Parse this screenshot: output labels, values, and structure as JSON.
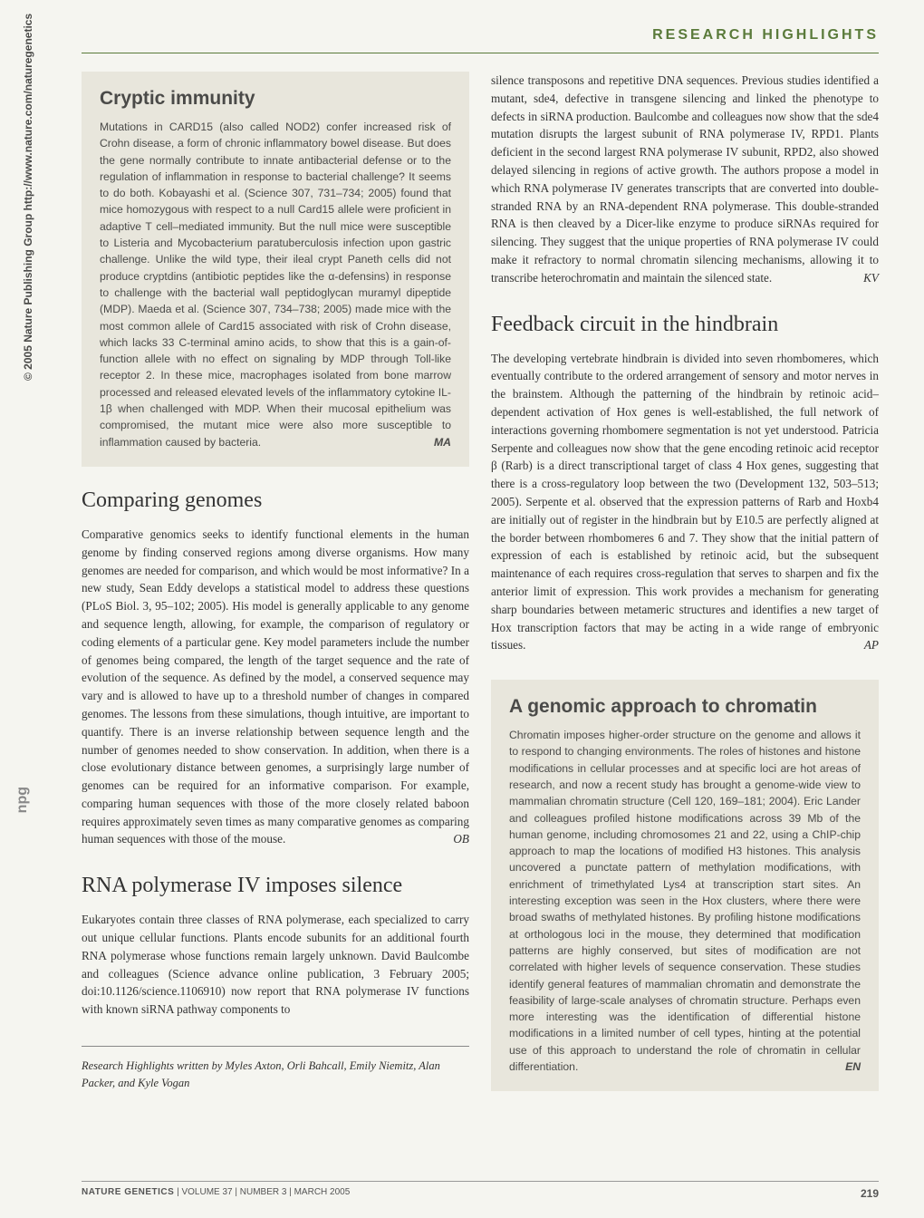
{
  "header": {
    "section_title": "RESEARCH HIGHLIGHTS"
  },
  "sidebar": {
    "copyright": "© 2005 Nature Publishing Group  http://www.nature.com/naturegenetics",
    "logo": "npg"
  },
  "articles": {
    "cryptic_immunity": {
      "title": "Cryptic immunity",
      "body": "Mutations in CARD15 (also called NOD2) confer increased risk of Crohn disease, a form of chronic inflammatory bowel disease. But does the gene normally contribute to innate antibacterial defense or to the regulation of inflammation in response to bacterial challenge? It seems to do both. Kobayashi et al. (Science 307, 731–734; 2005) found that mice homozygous with respect to a null Card15 allele were proficient in adaptive T cell–mediated immunity. But the null mice were susceptible to Listeria and Mycobacterium paratuberculosis infection upon gastric challenge. Unlike the wild type, their ileal crypt Paneth cells did not produce cryptdins (antibiotic peptides like the α-defensins) in response to challenge with the bacterial wall peptidoglycan muramyl dipeptide (MDP). Maeda et al. (Science 307, 734–738; 2005) made mice with the most common allele of Card15 associated with risk of Crohn disease, which lacks 33 C-terminal amino acids, to show that this is a gain-of-function allele with no effect on signaling by MDP through Toll-like receptor 2. In these mice, macrophages isolated from bone marrow processed and released elevated levels of the inflammatory cytokine IL-1β when challenged with MDP. When their mucosal epithelium was compromised, the mutant mice were also more susceptible to inflammation caused by bacteria.",
      "author": "MA"
    },
    "comparing_genomes": {
      "title": "Comparing genomes",
      "body": "Comparative genomics seeks to identify functional elements in the human genome by finding conserved regions among diverse organisms. How many genomes are needed for comparison, and which would be most informative? In a new study, Sean Eddy develops a statistical model to address these questions (PLoS Biol. 3, 95–102; 2005). His model is generally applicable to any genome and sequence length, allowing, for example, the comparison of regulatory or coding elements of a particular gene. Key model parameters include the number of genomes being compared, the length of the target sequence and the rate of evolution of the sequence. As defined by the model, a conserved sequence may vary and is allowed to have up to a threshold number of changes in compared genomes. The lessons from these simulations, though intuitive, are important to quantify. There is an inverse relationship between sequence length and the number of genomes needed to show conservation. In addition, when there is a close evolutionary distance between genomes, a surprisingly large number of genomes can be required for an informative comparison. For example, comparing human sequences with those of the more closely related baboon requires approximately seven times as many comparative genomes as comparing human sequences with those of the mouse.",
      "author": "OB"
    },
    "rna_polymerase": {
      "title": "RNA polymerase IV imposes silence",
      "body_part1": "Eukaryotes contain three classes of RNA polymerase, each specialized to carry out unique cellular functions. Plants encode subunits for an additional fourth RNA polymerase whose functions remain largely unknown. David Baulcombe and colleagues (Science advance online publication, 3 February 2005; doi:10.1126/science.1106910) now report that RNA polymerase IV functions with known siRNA pathway components to",
      "body_part2": "silence transposons and repetitive DNA sequences. Previous studies identified a mutant, sde4, defective in transgene silencing and linked the phenotype to defects in siRNA production. Baulcombe and colleagues now show that the sde4 mutation disrupts the largest subunit of RNA polymerase IV, RPD1. Plants deficient in the second largest RNA polymerase IV subunit, RPD2, also showed delayed silencing in regions of active growth. The authors propose a model in which RNA polymerase IV generates transcripts that are converted into double-stranded RNA by an RNA-dependent RNA polymerase. This double-stranded RNA is then cleaved by a Dicer-like enzyme to produce siRNAs required for silencing. They suggest that the unique properties of RNA polymerase IV could make it refractory to normal chromatin silencing mechanisms, allowing it to transcribe heterochromatin and maintain the silenced state.",
      "author": "KV"
    },
    "feedback_circuit": {
      "title": "Feedback circuit in the hindbrain",
      "body": "The developing vertebrate hindbrain is divided into seven rhombomeres, which eventually contribute to the ordered arrangement of sensory and motor nerves in the brainstem. Although the patterning of the hindbrain by retinoic acid–dependent activation of Hox genes is well-established, the full network of interactions governing rhombomere segmentation is not yet understood. Patricia Serpente and colleagues now show that the gene encoding retinoic acid receptor β (Rarb) is a direct transcriptional target of class 4 Hox genes, suggesting that there is a cross-regulatory loop between the two (Development 132, 503–513; 2005). Serpente et al. observed that the expression patterns of Rarb and Hoxb4 are initially out of register in the hindbrain but by E10.5 are perfectly aligned at the border between rhombomeres 6 and 7. They show that the initial pattern of expression of each is established by retinoic acid, but the subsequent maintenance of each requires cross-regulation that serves to sharpen and fix the anterior limit of expression. This work provides a mechanism for generating sharp boundaries between metameric structures and identifies a new target of Hox transcription factors that may be acting in a wide range of embryonic tissues.",
      "author": "AP"
    },
    "genomic_chromatin": {
      "title": "A genomic approach to chromatin",
      "body": "Chromatin imposes higher-order structure on the genome and allows it to respond to changing environments. The roles of histones and histone modifications in cellular processes and at specific loci are hot areas of research, and now a recent study has brought a genome-wide view to mammalian chromatin structure (Cell 120, 169–181; 2004). Eric Lander and colleagues profiled histone modifications across 39 Mb of the human genome, including chromosomes 21 and 22, using a ChIP-chip approach to map the locations of modified H3 histones. This analysis uncovered a punctate pattern of methylation modifications, with enrichment of trimethylated Lys4 at transcription start sites. An interesting exception was seen in the Hox clusters, where there were broad swaths of methylated histones. By profiling histone modifications at orthologous loci in the mouse, they determined that modification patterns are highly conserved, but sites of modification are not correlated with higher levels of sequence conservation. These studies identify general features of mammalian chromatin and demonstrate the feasibility of large-scale analyses of chromatin structure. Perhaps even more interesting was the identification of differential histone modifications in a limited number of cell types, hinting at the potential use of this approach to understand the role of chromatin in cellular differentiation.",
      "author": "EN"
    }
  },
  "credits": "Research Highlights written by Myles Axton, Orli Bahcall, Emily Niemitz, Alan Packer, and Kyle Vogan",
  "footer": {
    "journal": "NATURE GENETICS",
    "issue": "| VOLUME 37 | NUMBER 3 | MARCH 2005",
    "page": "219"
  },
  "colors": {
    "accent_green": "#5a7a3a",
    "box_bg": "#e8e6dc",
    "page_bg": "#f5f5f0",
    "text": "#333230"
  }
}
